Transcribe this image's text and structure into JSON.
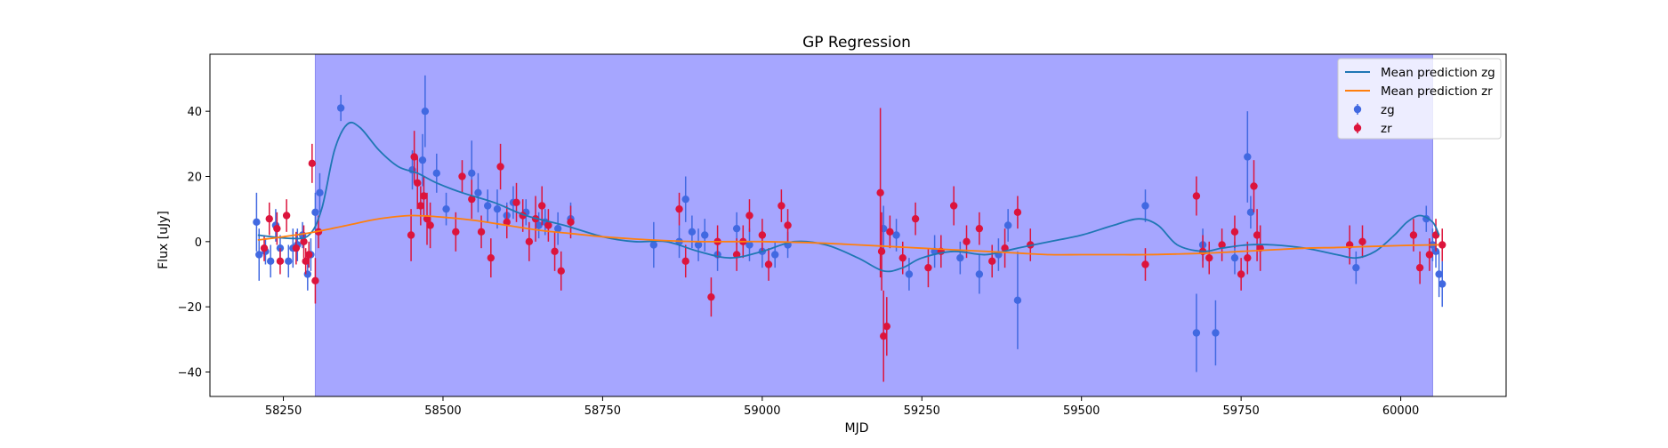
{
  "chart_data": {
    "type": "scatter",
    "title": "GP Regression",
    "xlabel": "MJD",
    "ylabel": "Flux [uJy]",
    "xlim": [
      58135,
      60165
    ],
    "ylim": [
      -47.5,
      57.5
    ],
    "xticks": [
      58250,
      58500,
      58750,
      59000,
      59250,
      59500,
      59750,
      60000
    ],
    "yticks": [
      -40,
      -20,
      0,
      20,
      40
    ],
    "grid": false,
    "legend_position": "top-right",
    "shaded_region": {
      "x_start": 58300,
      "x_end": 60050,
      "color": "#a6a6ff"
    },
    "colors": {
      "zg_line": "#1f77b4",
      "zr_line": "#ff7f0e",
      "zg_points": "#4169e1",
      "zr_points": "#dc143c",
      "shade": "#a6a6ff",
      "shade_edge": "#8b8bf0"
    },
    "legend": [
      {
        "label": "Mean prediction zg",
        "kind": "line",
        "color": "#1f77b4"
      },
      {
        "label": "Mean prediction zr",
        "kind": "line",
        "color": "#ff7f0e"
      },
      {
        "label": "zg",
        "kind": "errorbar",
        "color": "#4169e1"
      },
      {
        "label": "zr",
        "kind": "errorbar",
        "color": "#dc143c"
      }
    ],
    "series": [
      {
        "name": "Mean prediction zg",
        "type": "line",
        "x": [
          58210,
          58260,
          58290,
          58310,
          58330,
          58350,
          58370,
          58400,
          58430,
          58460,
          58490,
          58530,
          58580,
          58630,
          58690,
          58750,
          58800,
          58850,
          58900,
          58950,
          59000,
          59050,
          59100,
          59150,
          59190,
          59220,
          59250,
          59300,
          59350,
          59400,
          59450,
          59500,
          59550,
          59590,
          59620,
          59650,
          59690,
          59720,
          59760,
          59800,
          59850,
          59900,
          59930,
          59960,
          59990,
          60010,
          60030,
          60050,
          60060
        ],
        "y": [
          2,
          1,
          2,
          10,
          28,
          36,
          35,
          28,
          23,
          21,
          18,
          15,
          12,
          8,
          5,
          1.5,
          0,
          0,
          -3,
          -5,
          -3,
          0,
          -1,
          -5,
          -9,
          -8,
          -5,
          -3,
          -4,
          -2,
          0,
          2,
          5,
          7,
          5,
          -1,
          -3,
          -2,
          -1,
          -1,
          -2,
          -4,
          -5,
          -3,
          2,
          6,
          8,
          6,
          2
        ]
      },
      {
        "name": "Mean prediction zr",
        "type": "line",
        "x": [
          58210,
          58250,
          58300,
          58350,
          58400,
          58450,
          58500,
          58550,
          58600,
          58650,
          58700,
          58750,
          58800,
          58850,
          58900,
          58950,
          59000,
          59050,
          59100,
          59150,
          59200,
          59250,
          59300,
          59350,
          59400,
          59450,
          59500,
          59550,
          59600,
          59650,
          59700,
          59750,
          59800,
          59850,
          59900,
          59950,
          60000,
          60050,
          60060
        ],
        "y": [
          0.5,
          1.5,
          3,
          5,
          7,
          8,
          7.5,
          6.5,
          5,
          3.5,
          2.5,
          1.5,
          0.8,
          0.3,
          0,
          0,
          0,
          -0.2,
          -0.5,
          -1,
          -1.5,
          -2,
          -2.5,
          -3,
          -3.5,
          -4,
          -4,
          -4,
          -4,
          -3.8,
          -3.5,
          -3,
          -2.5,
          -2,
          -1.8,
          -1.5,
          -1.2,
          -1,
          -1
        ]
      },
      {
        "name": "zg",
        "type": "errorbar",
        "x": [
          58208,
          58212,
          58222,
          58230,
          58238,
          58245,
          58258,
          58265,
          58272,
          58280,
          58288,
          58293,
          58300,
          58307,
          58340,
          58452,
          58468,
          58472,
          58490,
          58505,
          58545,
          58555,
          58570,
          58585,
          58600,
          58610,
          58630,
          58650,
          58660,
          58680,
          58700,
          58830,
          58870,
          58880,
          58890,
          58900,
          58910,
          58930,
          58960,
          58980,
          59000,
          59020,
          59040,
          59190,
          59210,
          59230,
          59270,
          59310,
          59340,
          59370,
          59385,
          59400,
          59600,
          59680,
          59690,
          59710,
          59740,
          59760,
          59765,
          59930,
          60040,
          60050,
          60055,
          60060,
          60065
        ],
        "y": [
          6,
          -4,
          -3,
          -6,
          5,
          -2,
          -6,
          -2,
          -1,
          2,
          -10,
          -4,
          9,
          15,
          41,
          22,
          25,
          40,
          21,
          10,
          21,
          15,
          11,
          10,
          8,
          12,
          9,
          5,
          6,
          4,
          7,
          -1,
          0,
          13,
          3,
          -1,
          2,
          -4,
          4,
          -1,
          -3,
          -4,
          -1,
          4,
          2,
          -10,
          -3,
          -5,
          -10,
          -4,
          5,
          -18,
          11,
          -28,
          -1,
          -28,
          -5,
          26,
          9,
          -8,
          7,
          -1,
          -3,
          -10,
          -13
        ],
        "err": [
          9,
          8,
          4,
          5,
          5,
          4,
          5,
          6,
          5,
          4,
          5,
          5,
          6,
          6,
          4,
          6,
          8,
          11,
          6,
          5,
          10,
          6,
          5,
          6,
          4,
          5,
          4,
          4,
          4,
          5,
          5,
          7,
          5,
          7,
          5,
          5,
          5,
          5,
          5,
          5,
          5,
          4,
          4,
          7,
          5,
          5,
          5,
          5,
          6,
          5,
          5,
          15,
          5,
          12,
          5,
          10,
          5,
          14,
          5,
          5,
          4,
          5,
          5,
          7,
          7
        ]
      },
      {
        "name": "zr",
        "type": "errorbar",
        "x": [
          58220,
          58228,
          58240,
          58245,
          58255,
          58270,
          58282,
          58285,
          58290,
          58295,
          58300,
          58305,
          58450,
          58455,
          58460,
          58465,
          58470,
          58475,
          58480,
          58520,
          58530,
          58545,
          58560,
          58575,
          58590,
          58600,
          58615,
          58625,
          58635,
          58645,
          58655,
          58665,
          58675,
          58685,
          58700,
          58870,
          58880,
          58920,
          58930,
          58960,
          58970,
          58980,
          59000,
          59010,
          59030,
          59040,
          59185,
          59187,
          59190,
          59195,
          59200,
          59220,
          59240,
          59260,
          59280,
          59300,
          59320,
          59340,
          59360,
          59380,
          59400,
          59420,
          59600,
          59680,
          59690,
          59700,
          59720,
          59740,
          59750,
          59760,
          59770,
          59775,
          59780,
          59920,
          59940,
          60020,
          60030,
          60045,
          60055,
          60065
        ],
        "y": [
          -2,
          7,
          4,
          -6,
          8,
          -2,
          0,
          -6,
          -4,
          24,
          -12,
          3,
          2,
          26,
          18,
          11,
          14,
          7,
          5,
          3,
          20,
          13,
          3,
          -5,
          23,
          6,
          12,
          8,
          0,
          7,
          11,
          5,
          -3,
          -9,
          6,
          10,
          -6,
          -17,
          0,
          -4,
          0,
          8,
          2,
          -7,
          11,
          5,
          15,
          -3,
          -29,
          -26,
          3,
          -5,
          7,
          -8,
          -3,
          11,
          0,
          4,
          -6,
          -2,
          9,
          -1,
          -7,
          14,
          -3,
          -5,
          -1,
          3,
          -10,
          -5,
          17,
          2,
          -2,
          -1,
          0,
          2,
          -8,
          -4,
          2,
          -1
        ],
        "err": [
          4,
          5,
          5,
          4,
          5,
          5,
          5,
          4,
          4,
          6,
          7,
          5,
          8,
          8,
          8,
          6,
          6,
          8,
          7,
          6,
          5,
          6,
          5,
          6,
          7,
          5,
          6,
          5,
          6,
          7,
          6,
          5,
          6,
          6,
          5,
          5,
          5,
          6,
          5,
          5,
          5,
          5,
          5,
          5,
          5,
          5,
          26,
          12,
          14,
          9,
          5,
          5,
          5,
          6,
          5,
          6,
          5,
          5,
          5,
          6,
          5,
          5,
          5,
          6,
          5,
          5,
          5,
          5,
          5,
          5,
          8,
          8,
          7,
          6,
          5,
          5,
          5,
          5,
          5,
          5
        ]
      }
    ]
  }
}
